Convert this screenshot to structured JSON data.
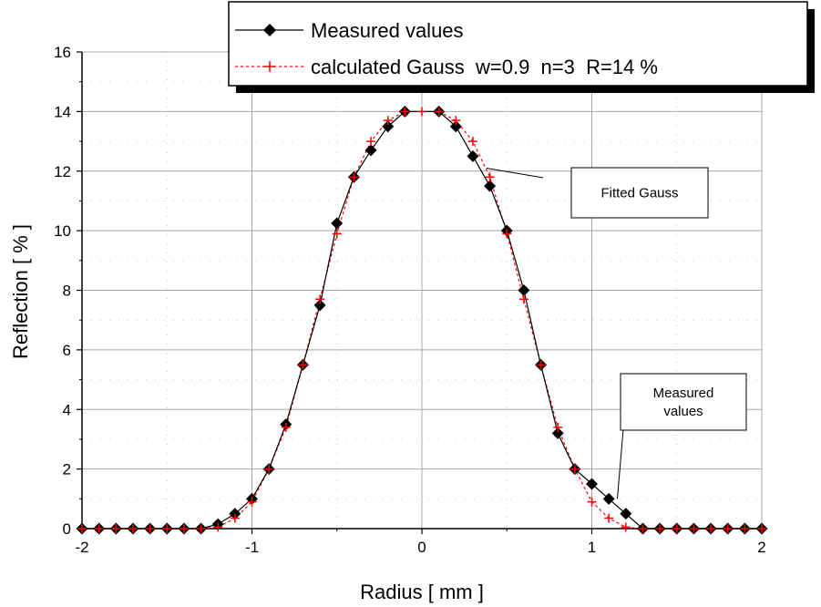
{
  "chart_data": {
    "type": "line",
    "xlabel": "Radius [ mm ]",
    "ylabel": "Reflection [ % ]",
    "xlim": [
      -2,
      2
    ],
    "ylim": [
      0,
      16
    ],
    "xticks": [
      -2,
      -1,
      0,
      1,
      2
    ],
    "xtick_labels": [
      "-2",
      "-1",
      "0",
      "1",
      "2"
    ],
    "yticks": [
      0,
      2,
      4,
      6,
      8,
      10,
      12,
      14,
      16
    ],
    "ytick_labels": [
      "0",
      "2",
      "4",
      "6",
      "8",
      "10",
      "12",
      "14",
      "16"
    ],
    "grid": true,
    "legend_position": "top-right",
    "series": [
      {
        "name": "Measured values",
        "color": "#000000",
        "marker": "diamond",
        "line_style": "solid",
        "x": [
          -2,
          -1.9,
          -1.8,
          -1.7,
          -1.6,
          -1.5,
          -1.4,
          -1.3,
          -1.2,
          -1.1,
          -1.0,
          -0.9,
          -0.8,
          -0.7,
          -0.6,
          -0.5,
          -0.4,
          -0.3,
          -0.2,
          -0.1,
          0.1,
          0.2,
          0.3,
          0.4,
          0.5,
          0.6,
          0.7,
          0.8,
          0.9,
          1.0,
          1.1,
          1.2,
          1.3,
          1.4,
          1.5,
          1.6,
          1.7,
          1.8,
          1.9,
          2.0
        ],
        "y": [
          0,
          0,
          0,
          0,
          0,
          0,
          0,
          0,
          0.15,
          0.5,
          1.0,
          2.0,
          3.5,
          5.5,
          7.5,
          10.25,
          11.8,
          12.7,
          13.5,
          14.0,
          14.0,
          13.5,
          12.5,
          11.5,
          10.0,
          8.0,
          5.5,
          3.2,
          2.0,
          1.5,
          1.0,
          0.5,
          0,
          0,
          0,
          0,
          0,
          0,
          0,
          0
        ]
      },
      {
        "name": "calculated Gauss  w=0.9  n=3  R=14 %",
        "color": "#ff0000",
        "marker": "plus",
        "line_style": "dotted",
        "x": [
          -2,
          -1.9,
          -1.8,
          -1.7,
          -1.6,
          -1.5,
          -1.4,
          -1.3,
          -1.2,
          -1.1,
          -1.0,
          -0.9,
          -0.8,
          -0.7,
          -0.6,
          -0.5,
          -0.4,
          -0.3,
          -0.2,
          -0.1,
          0,
          0.1,
          0.2,
          0.3,
          0.4,
          0.5,
          0.6,
          0.7,
          0.8,
          0.9,
          1.0,
          1.1,
          1.2,
          1.3,
          1.4,
          1.5,
          1.6,
          1.7,
          1.8,
          1.9,
          2.0
        ],
        "y": [
          0,
          0,
          0,
          0,
          0,
          0,
          0,
          0,
          0.05,
          0.35,
          0.9,
          2.0,
          3.4,
          5.5,
          7.7,
          9.9,
          11.8,
          13.0,
          13.7,
          14.0,
          14.0,
          14.0,
          13.7,
          13.0,
          11.8,
          9.9,
          7.7,
          5.5,
          3.4,
          2.0,
          0.9,
          0.35,
          0.05,
          0,
          0,
          0,
          0,
          0,
          0,
          0,
          0
        ]
      }
    ],
    "annotations": [
      {
        "text_lines": [
          "Fitted Gauss"
        ],
        "target_x": 0.38,
        "target_y": 12.1
      },
      {
        "text_lines": [
          "Measured",
          "values"
        ],
        "target_x": 1.15,
        "target_y": 1.0
      }
    ]
  }
}
